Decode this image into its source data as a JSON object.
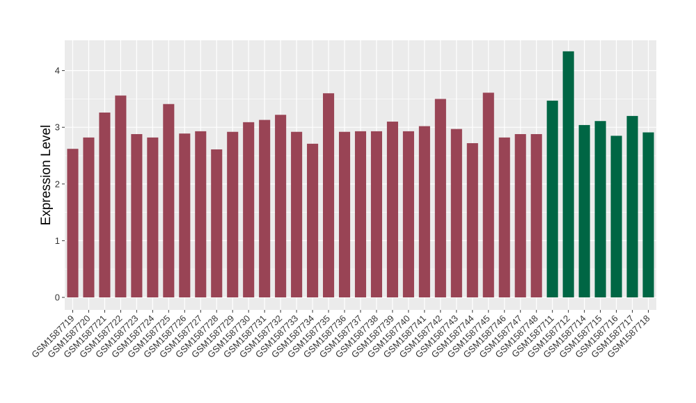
{
  "chart_data": {
    "type": "bar",
    "title": "",
    "xlabel": "",
    "ylabel": "Expression Level",
    "ylim": [
      0,
      4.5
    ],
    "yticks": [
      0,
      1,
      2,
      3,
      4
    ],
    "grid": true,
    "legend": "none",
    "categories": [
      "GSM1587719",
      "GSM1587720",
      "GSM1587721",
      "GSM1587722",
      "GSM1587723",
      "GSM1587724",
      "GSM1587725",
      "GSM1587726",
      "GSM1587727",
      "GSM1587728",
      "GSM1587729",
      "GSM1587730",
      "GSM1587731",
      "GSM1587732",
      "GSM1587733",
      "GSM1587734",
      "GSM1587735",
      "GSM1587736",
      "GSM1587737",
      "GSM1587738",
      "GSM1587739",
      "GSM1587740",
      "GSM1587741",
      "GSM1587742",
      "GSM1587743",
      "GSM1587744",
      "GSM1587745",
      "GSM1587746",
      "GSM1587747",
      "GSM1587748",
      "GSM1587711",
      "GSM1587712",
      "GSM1587714",
      "GSM1587715",
      "GSM1587716",
      "GSM1587717",
      "GSM1587718"
    ],
    "values": [
      2.62,
      2.82,
      3.26,
      3.56,
      2.88,
      2.82,
      3.41,
      2.89,
      2.93,
      2.61,
      2.92,
      3.09,
      3.13,
      3.22,
      2.92,
      2.71,
      3.6,
      2.92,
      2.93,
      2.93,
      3.1,
      2.93,
      3.02,
      3.5,
      2.97,
      2.72,
      3.61,
      2.82,
      2.88,
      2.88,
      3.47,
      4.34,
      3.04,
      3.11,
      2.85,
      3.2,
      2.91
    ],
    "bar_colors": [
      "#994455",
      "#994455",
      "#994455",
      "#994455",
      "#994455",
      "#994455",
      "#994455",
      "#994455",
      "#994455",
      "#994455",
      "#994455",
      "#994455",
      "#994455",
      "#994455",
      "#994455",
      "#994455",
      "#994455",
      "#994455",
      "#994455",
      "#994455",
      "#994455",
      "#994455",
      "#994455",
      "#994455",
      "#994455",
      "#994455",
      "#994455",
      "#994455",
      "#994455",
      "#994455",
      "#006644",
      "#006644",
      "#006644",
      "#006644",
      "#006644",
      "#006644",
      "#006644"
    ],
    "panel_background": "#EBEBEB",
    "grid_color": "#FFFFFF"
  }
}
